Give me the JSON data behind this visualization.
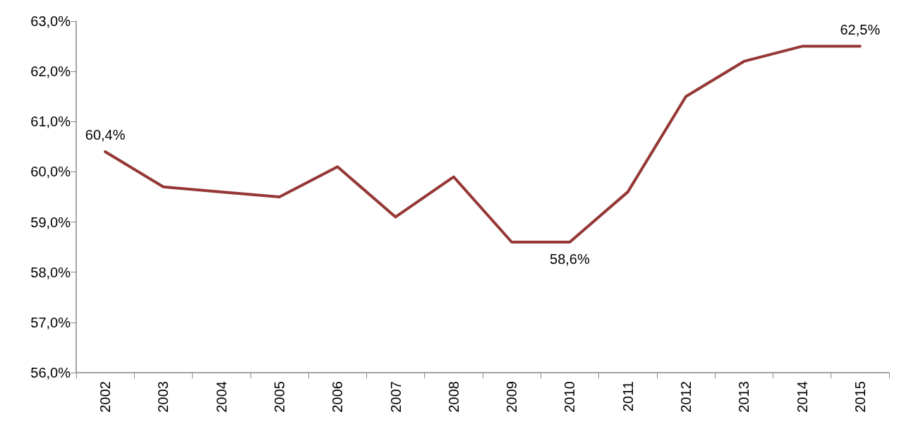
{
  "chart_data": {
    "type": "line",
    "categories": [
      "2002",
      "2003",
      "2004",
      "2005",
      "2006",
      "2007",
      "2008",
      "2009",
      "2010",
      "2011",
      "2012",
      "2013",
      "2014",
      "2015"
    ],
    "series": [
      {
        "color": "#953735",
        "values": [
          60.4,
          59.7,
          59.6,
          59.5,
          60.1,
          59.1,
          59.9,
          58.6,
          58.6,
          59.6,
          61.5,
          62.2,
          62.5,
          62.5
        ],
        "value_labels": [
          "60,4%",
          null,
          null,
          null,
          null,
          null,
          null,
          null,
          "58,6%",
          null,
          null,
          null,
          null,
          "62,5%"
        ]
      }
    ],
    "ylim": [
      56,
      63
    ],
    "yticks": [
      {
        "value": 56,
        "label": "56,0%"
      },
      {
        "value": 57,
        "label": "57,0%"
      },
      {
        "value": 58,
        "label": "58,0%"
      },
      {
        "value": 59,
        "label": "59,0%"
      },
      {
        "value": 60,
        "label": "60,0%"
      },
      {
        "value": 61,
        "label": "61,0%"
      },
      {
        "value": 62,
        "label": "62,0%"
      },
      {
        "value": 63,
        "label": "63,0%"
      }
    ],
    "grid": false,
    "marker": "none",
    "line_style": "solid"
  }
}
